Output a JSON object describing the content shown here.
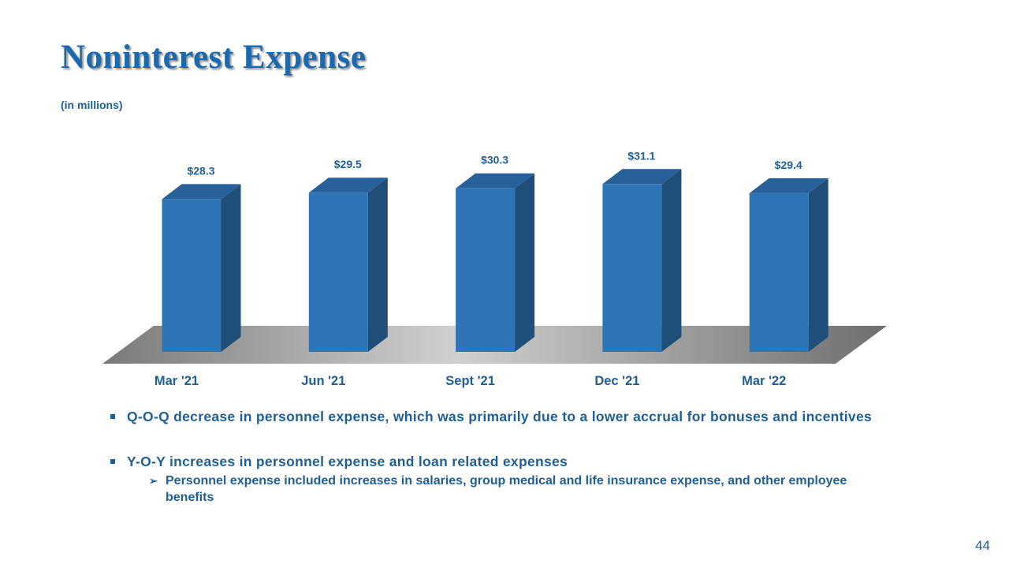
{
  "chart_data": {
    "type": "bar",
    "title": "Noninterest Expense",
    "subtitle": "(in millions)",
    "categories": [
      "Mar '21",
      "Jun '21",
      "Sept '21",
      "Dec '21",
      "Mar '22"
    ],
    "values": [
      28.3,
      29.5,
      30.3,
      31.1,
      29.4
    ],
    "value_labels": [
      "$28.3",
      "$29.5",
      "$30.3",
      "$31.1",
      "$29.4"
    ],
    "color": "#2e75b6"
  },
  "notes": {
    "bullets": [
      {
        "text": "Q-O-Q decrease in personnel expense, which was primarily due to a lower accrual for bonuses and incentives"
      },
      {
        "text": "Y-O-Y increases in personnel expense and loan related expenses",
        "sub": [
          "Personnel expense included increases in salaries, group medical and life insurance expense, and other employee benefits"
        ]
      }
    ]
  },
  "page_number": 44
}
